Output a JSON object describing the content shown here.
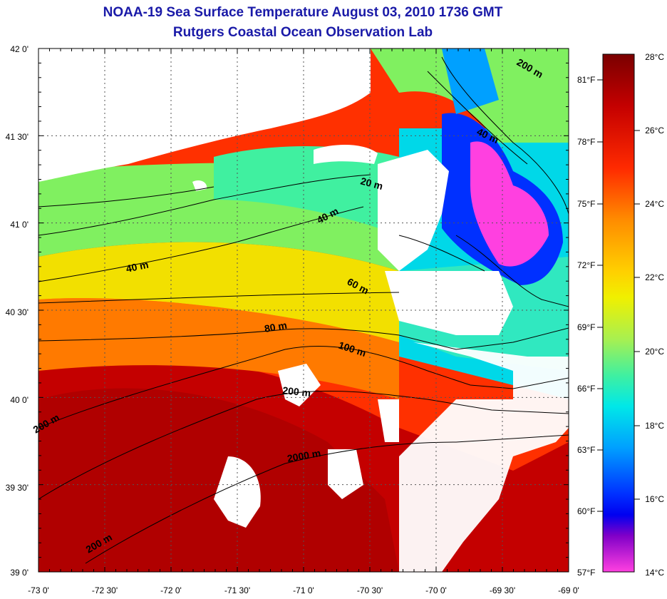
{
  "title": "NOAA-19 Sea Surface Temperature August 03, 2010 1736 GMT",
  "subtitle": "Rutgers Coastal Ocean Observation Lab",
  "lat_labels": [
    "42 0'",
    "41 30'",
    "41 0'",
    "40 30'",
    "40 0'",
    "39 30'",
    "39 0'"
  ],
  "lon_labels": [
    "-73 0'",
    "-72 30'",
    "-72 0'",
    "-71 30'",
    "-71 0'",
    "-70 30'",
    "-70 0'",
    "-69 30'",
    "-69 0'"
  ],
  "fahrenheit_labels": [
    "81°F",
    "78°F",
    "75°F",
    "72°F",
    "69°F",
    "66°F",
    "63°F",
    "60°F",
    "57°F"
  ],
  "celsius_labels": [
    "28°C",
    "26°C",
    "24°C",
    "22°C",
    "20°C",
    "18°C",
    "16°C",
    "14°C"
  ],
  "contour_labels": [
    "20 m",
    "40 m",
    "40 m",
    "40 m",
    "60 m",
    "80 m",
    "100 m",
    "200 m",
    "2000 m",
    "200 m",
    "200 m",
    "200 m"
  ],
  "colorbar_colors": [
    "#7a0000",
    "#c40000",
    "#ff3a00",
    "#ff8c00",
    "#ffd000",
    "#f0f000",
    "#a8f050",
    "#40f0a0",
    "#00e8e8",
    "#00a0ff",
    "#0040ff",
    "#0000f0",
    "#8000c8",
    "#ff40e0"
  ],
  "colors": {
    "title": "#1a1aa8",
    "land_cloud": "#ffffff",
    "contour": "#000000"
  }
}
